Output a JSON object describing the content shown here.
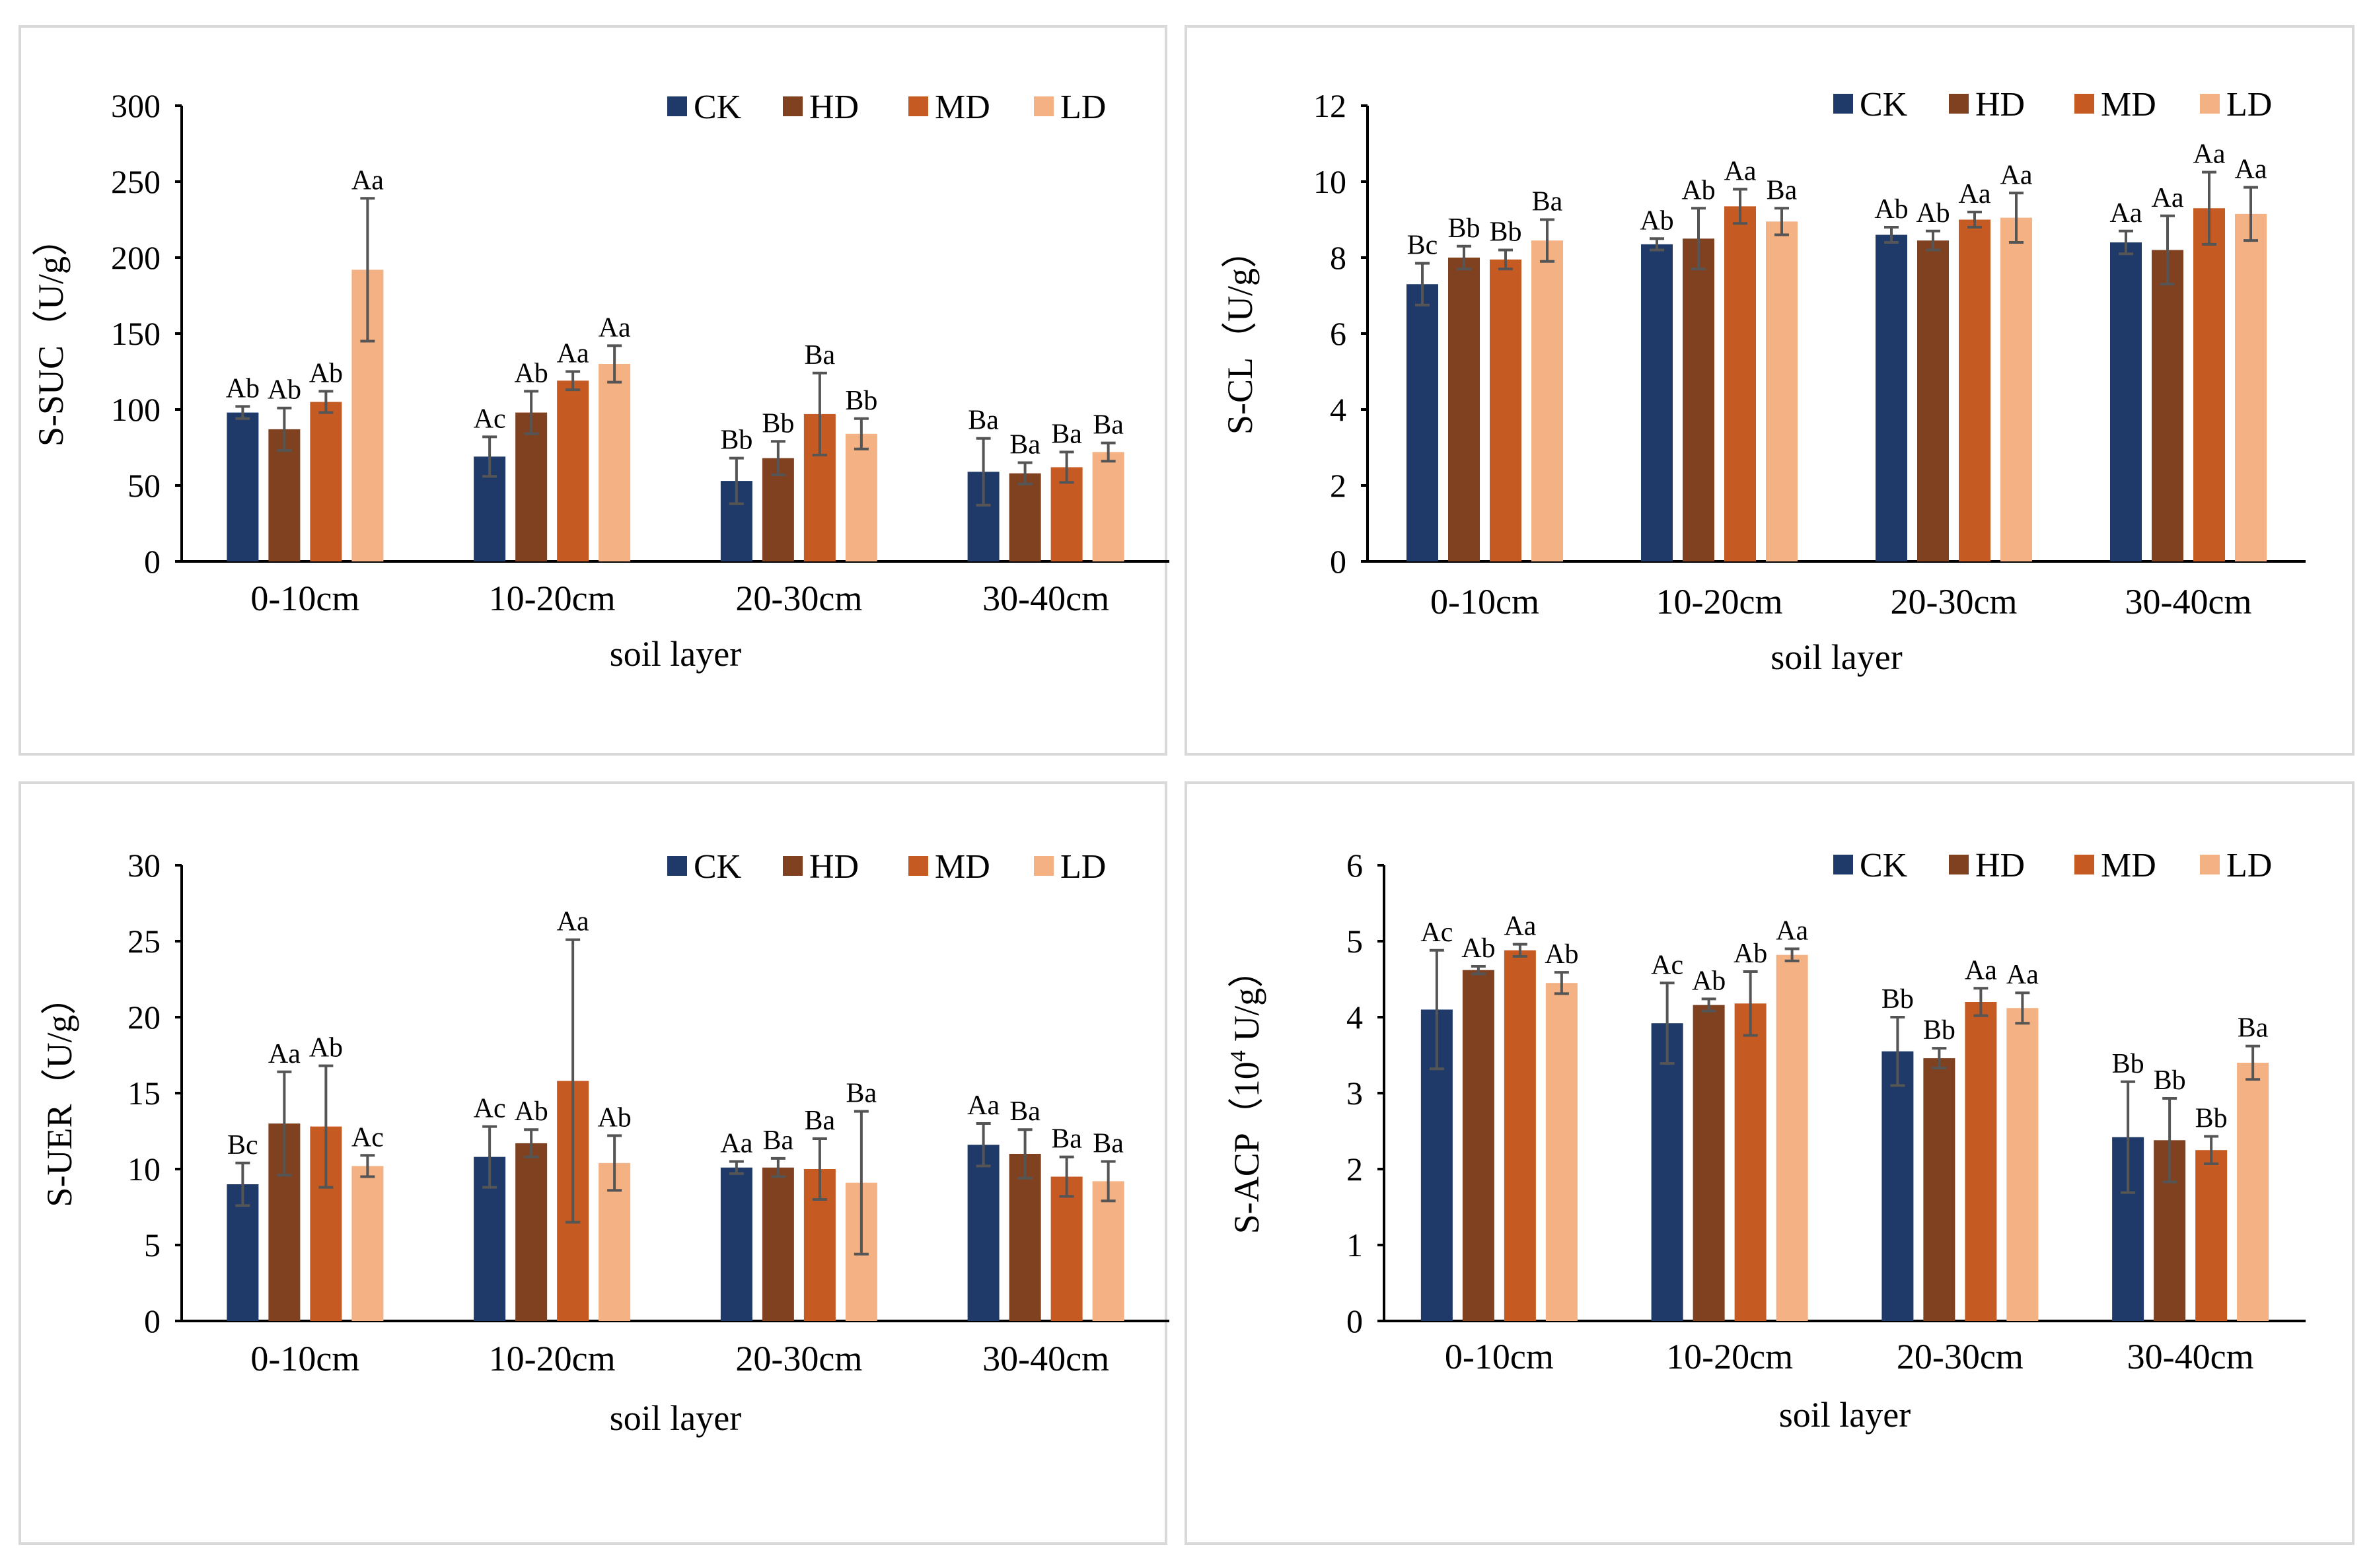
{
  "chart_data": [
    {
      "type": "bar",
      "ylabel": "S-SUC（U/g）",
      "xlabel": "soil layer",
      "ylim": [
        0,
        300
      ],
      "yticks": [
        0,
        50,
        100,
        150,
        200,
        250,
        300
      ],
      "categories": [
        "0-10cm",
        "10-20cm",
        "20-30cm",
        "30-40cm"
      ],
      "legend_position": "top-right",
      "series": [
        {
          "name": "CK",
          "color": "#1f3a68",
          "values": [
            98,
            69,
            53,
            59
          ],
          "errors": [
            4,
            13,
            15,
            22
          ],
          "labels": [
            "Ab",
            "Ac",
            "Bb",
            "Ba"
          ]
        },
        {
          "name": "HD",
          "color": "#7f4120",
          "values": [
            87,
            98,
            68,
            58
          ],
          "errors": [
            14,
            14,
            11,
            7
          ],
          "labels": [
            "Ab",
            "Ab",
            "Bb",
            "Ba"
          ]
        },
        {
          "name": "MD",
          "color": "#c55a22",
          "values": [
            105,
            119,
            97,
            62
          ],
          "errors": [
            7,
            6,
            27,
            10
          ],
          "labels": [
            "Ab",
            "Aa",
            "Ba",
            "Ba"
          ]
        },
        {
          "name": "LD",
          "color": "#f4b183",
          "values": [
            192,
            130,
            84,
            72
          ],
          "errors": [
            47,
            12,
            10,
            6
          ],
          "labels": [
            "Aa",
            "Aa",
            "Bb",
            "Ba"
          ]
        }
      ]
    },
    {
      "type": "bar",
      "ylabel": "S-CL（U/g）",
      "xlabel": "soil layer",
      "ylim": [
        0,
        12
      ],
      "yticks": [
        0,
        2,
        4,
        6,
        8,
        10,
        12
      ],
      "categories": [
        "0-10cm",
        "10-20cm",
        "20-30cm",
        "30-40cm"
      ],
      "legend_position": "top-right",
      "series": [
        {
          "name": "CK",
          "color": "#1f3a68",
          "values": [
            7.3,
            8.35,
            8.6,
            8.4
          ],
          "errors": [
            0.55,
            0.15,
            0.2,
            0.3
          ],
          "labels": [
            "Bc",
            "Ab",
            "Ab",
            "Aa"
          ]
        },
        {
          "name": "HD",
          "color": "#7f4120",
          "values": [
            8.0,
            8.5,
            8.45,
            8.2
          ],
          "errors": [
            0.3,
            0.8,
            0.25,
            0.9
          ],
          "labels": [
            "Bb",
            "Ab",
            "Ab",
            "Aa"
          ]
        },
        {
          "name": "MD",
          "color": "#c55a22",
          "values": [
            7.95,
            9.35,
            9.0,
            9.3
          ],
          "errors": [
            0.25,
            0.45,
            0.2,
            0.95
          ],
          "labels": [
            "Bb",
            "Aa",
            "Aa",
            "Aa"
          ]
        },
        {
          "name": "LD",
          "color": "#f4b183",
          "values": [
            8.45,
            8.95,
            9.05,
            9.15
          ],
          "errors": [
            0.55,
            0.35,
            0.65,
            0.7
          ],
          "labels": [
            "Ba",
            "Ba",
            "Aa",
            "Aa"
          ]
        }
      ]
    },
    {
      "type": "bar",
      "ylabel": "S-UER（U/g）",
      "xlabel": "soil layer",
      "ylim": [
        0,
        30
      ],
      "yticks": [
        0,
        5,
        10,
        15,
        20,
        25,
        30
      ],
      "categories": [
        "0-10cm",
        "10-20cm",
        "20-30cm",
        "30-40cm"
      ],
      "legend_position": "top-right",
      "series": [
        {
          "name": "CK",
          "color": "#1f3a68",
          "values": [
            9.0,
            10.8,
            10.1,
            11.6
          ],
          "errors": [
            1.4,
            2.0,
            0.4,
            1.4
          ],
          "labels": [
            "Bc",
            "Ac",
            "Aa",
            "Aa"
          ]
        },
        {
          "name": "HD",
          "color": "#7f4120",
          "values": [
            13.0,
            11.7,
            10.1,
            11.0
          ],
          "errors": [
            3.4,
            0.9,
            0.6,
            1.6
          ],
          "labels": [
            "Aa",
            "Ab",
            "Ba",
            "Ba"
          ]
        },
        {
          "name": "MD",
          "color": "#c55a22",
          "values": [
            12.8,
            15.8,
            10.0,
            9.5
          ],
          "errors": [
            4.0,
            9.3,
            2.0,
            1.3
          ],
          "labels": [
            "Ab",
            "Aa",
            "Ba",
            "Ba"
          ]
        },
        {
          "name": "LD",
          "color": "#f4b183",
          "values": [
            10.2,
            10.4,
            9.1,
            9.2
          ],
          "errors": [
            0.7,
            1.8,
            4.7,
            1.3
          ],
          "labels": [
            "Ac",
            "Ab",
            "Ba",
            "Ba"
          ]
        }
      ]
    },
    {
      "type": "bar",
      "ylabel": "S-ACP（",
      "ylabel_exp": "4",
      "ylabel_tail": " U/g）",
      "ylabel_base": "10",
      "xlabel": "soil layer",
      "ylim": [
        0,
        6
      ],
      "yticks": [
        0,
        1,
        2,
        3,
        4,
        5,
        6
      ],
      "categories": [
        "0-10cm",
        "10-20cm",
        "20-30cm",
        "30-40cm"
      ],
      "legend_position": "top-right",
      "series": [
        {
          "name": "CK",
          "color": "#1f3a68",
          "values": [
            4.1,
            3.92,
            3.55,
            2.42
          ],
          "errors": [
            0.78,
            0.53,
            0.45,
            0.73
          ],
          "labels": [
            "Ac",
            "Ac",
            "Bb",
            "Bb"
          ]
        },
        {
          "name": "HD",
          "color": "#7f4120",
          "values": [
            4.62,
            4.16,
            3.46,
            2.38
          ],
          "errors": [
            0.05,
            0.08,
            0.13,
            0.55
          ],
          "labels": [
            "Ab",
            "Ab",
            "Bb",
            "Bb"
          ]
        },
        {
          "name": "MD",
          "color": "#c55a22",
          "values": [
            4.88,
            4.18,
            4.2,
            2.25
          ],
          "errors": [
            0.08,
            0.42,
            0.18,
            0.18
          ],
          "labels": [
            "Aa",
            "Ab",
            "Aa",
            "Bb"
          ]
        },
        {
          "name": "LD",
          "color": "#f4b183",
          "values": [
            4.45,
            4.82,
            4.12,
            3.4
          ],
          "errors": [
            0.14,
            0.08,
            0.2,
            0.22
          ],
          "labels": [
            "Ab",
            "Aa",
            "Aa",
            "Ba"
          ]
        }
      ]
    }
  ]
}
